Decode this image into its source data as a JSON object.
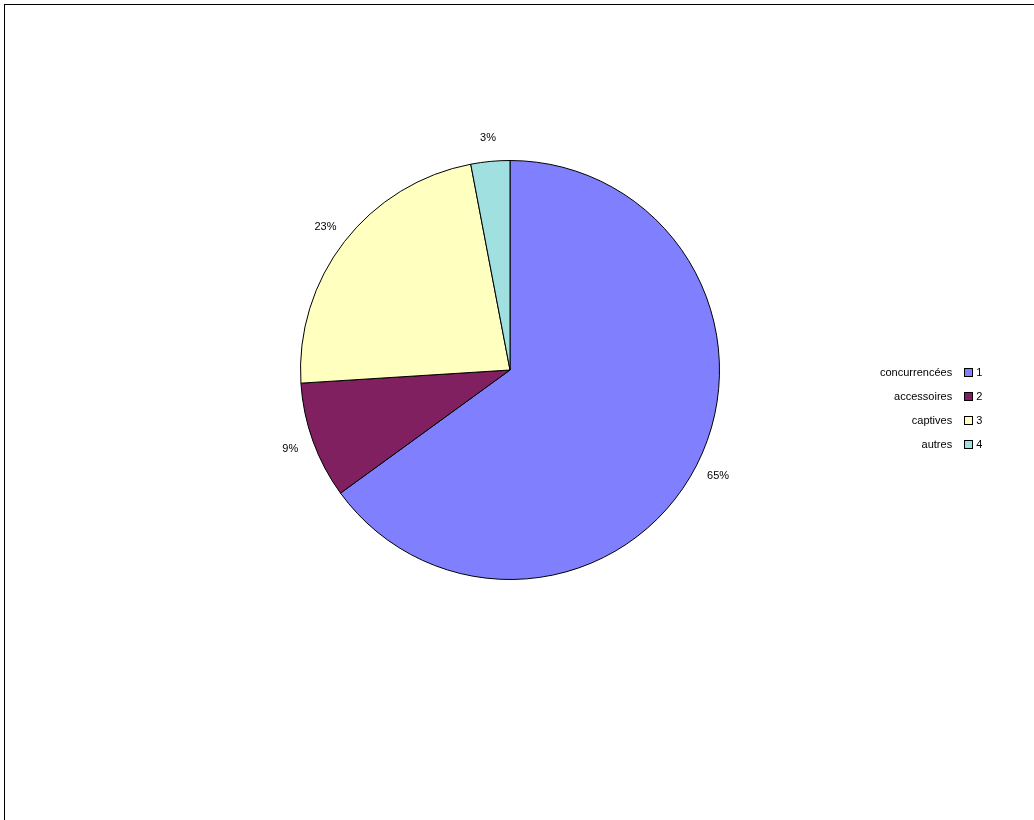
{
  "chart_data": {
    "type": "pie",
    "categories": [
      "1",
      "2",
      "3",
      "4"
    ],
    "values": [
      65,
      9,
      23,
      3
    ],
    "colors": [
      "#8080ff",
      "#802060",
      "#ffffc0",
      "#a0e0e0"
    ],
    "value_labels": [
      "65%",
      "9%",
      "23%",
      "3%"
    ],
    "annotations": [
      "concurrencées",
      "accessoires",
      "captives",
      "autres"
    ],
    "legend": "right"
  }
}
